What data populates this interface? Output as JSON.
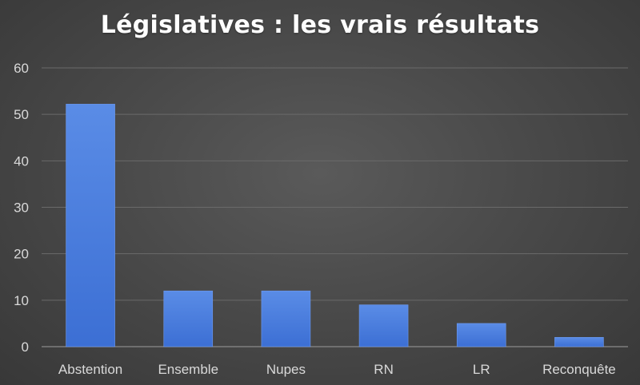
{
  "chart_data": {
    "type": "bar",
    "title": "Législatives : les vrais résultats",
    "xlabel": "",
    "ylabel": "",
    "categories": [
      "Abstention",
      "Ensemble",
      "Nupes",
      "RN",
      "LR",
      "Reconquête"
    ],
    "values": [
      52.2,
      12,
      12,
      9,
      5,
      2
    ],
    "ylim": [
      0,
      60
    ],
    "yticks": [
      0,
      10,
      20,
      30,
      40,
      50,
      60
    ],
    "ytick_labels": [
      "0",
      "10",
      "20",
      "30",
      "40",
      "50",
      "60"
    ],
    "grid": true,
    "legend": "none"
  },
  "colors": {
    "bar_top": "#5a8ce6",
    "bar_bottom": "#3c6fd4",
    "grid": "#6a6a6a",
    "axis": "#8a8a8a",
    "text": "#d9d9d9",
    "title": "#ffffff"
  }
}
